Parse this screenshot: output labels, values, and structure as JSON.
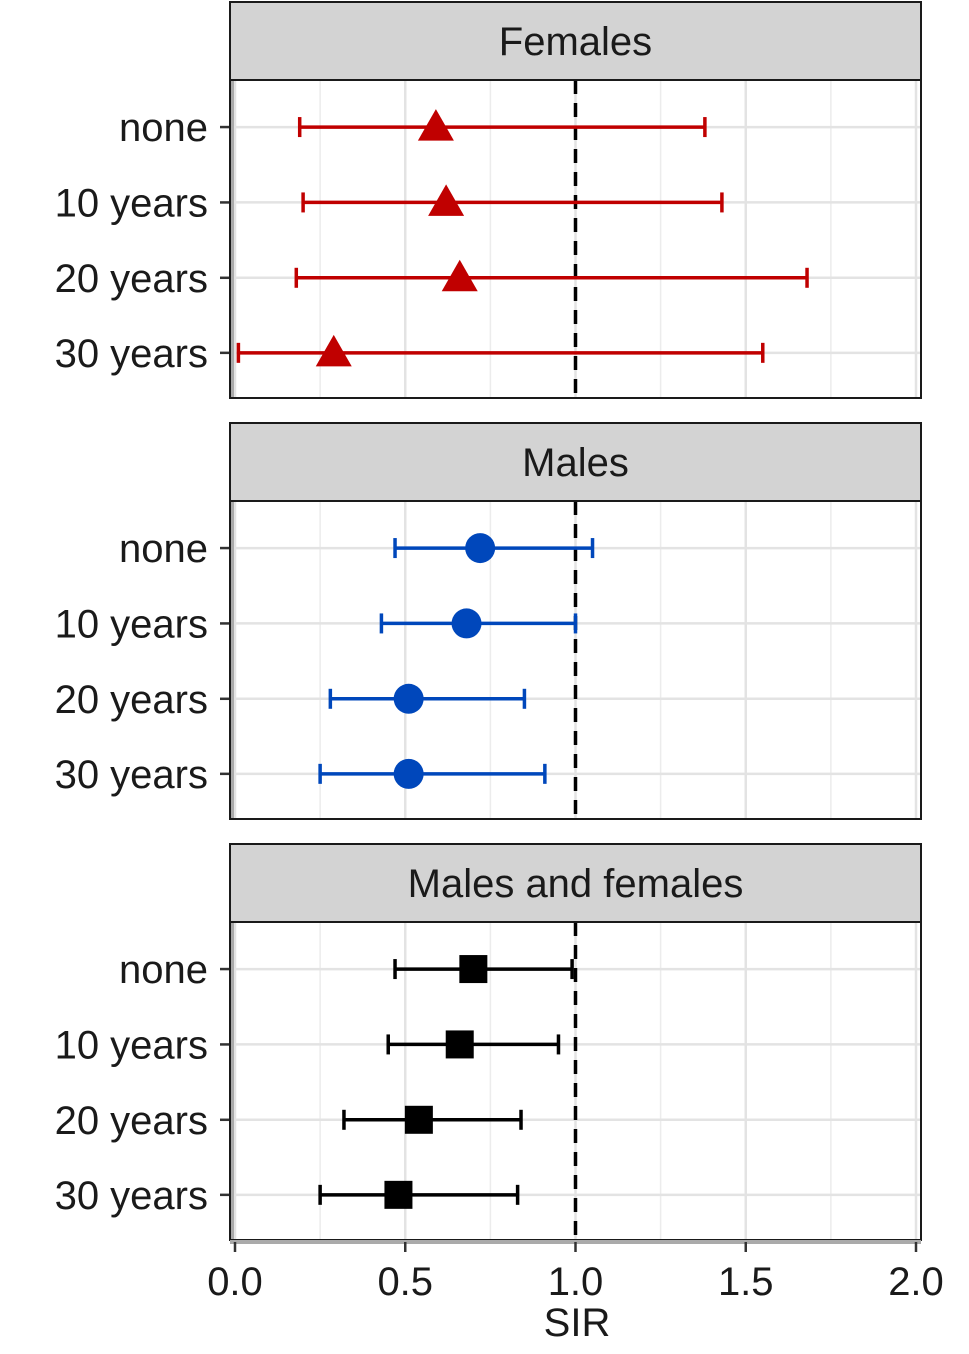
{
  "chart_data": {
    "type": "forest",
    "xlabel": "SIR",
    "xlim": [
      0,
      2
    ],
    "xticks": [
      "0.0",
      "0.5",
      "1.0",
      "1.5",
      "2.0"
    ],
    "x_tick_values": [
      0,
      0.5,
      1.0,
      1.5,
      2.0
    ],
    "reference_line": 1.0,
    "grid": true,
    "categories": [
      "none",
      "10 years",
      "20 years",
      "30 years"
    ],
    "panels": [
      {
        "name": "Females",
        "color": "#C00000",
        "marker": "triangle",
        "points": [
          {
            "category": "none",
            "estimate": 0.59,
            "lower": 0.19,
            "upper": 1.38
          },
          {
            "category": "10 years",
            "estimate": 0.62,
            "lower": 0.2,
            "upper": 1.43
          },
          {
            "category": "20 years",
            "estimate": 0.66,
            "lower": 0.18,
            "upper": 1.68
          },
          {
            "category": "30 years",
            "estimate": 0.29,
            "lower": 0.01,
            "upper": 1.55
          }
        ]
      },
      {
        "name": "Males",
        "color": "#0047BB",
        "marker": "circle",
        "points": [
          {
            "category": "none",
            "estimate": 0.72,
            "lower": 0.47,
            "upper": 1.05
          },
          {
            "category": "10 years",
            "estimate": 0.68,
            "lower": 0.43,
            "upper": 1.0
          },
          {
            "category": "20 years",
            "estimate": 0.51,
            "lower": 0.28,
            "upper": 0.85
          },
          {
            "category": "30 years",
            "estimate": 0.51,
            "lower": 0.25,
            "upper": 0.91
          }
        ]
      },
      {
        "name": "Males and females",
        "color": "#000000",
        "marker": "square",
        "points": [
          {
            "category": "none",
            "estimate": 0.7,
            "lower": 0.47,
            "upper": 0.99
          },
          {
            "category": "10 years",
            "estimate": 0.66,
            "lower": 0.45,
            "upper": 0.95
          },
          {
            "category": "20 years",
            "estimate": 0.54,
            "lower": 0.32,
            "upper": 0.84
          },
          {
            "category": "30 years",
            "estimate": 0.48,
            "lower": 0.25,
            "upper": 0.83
          }
        ]
      }
    ]
  }
}
